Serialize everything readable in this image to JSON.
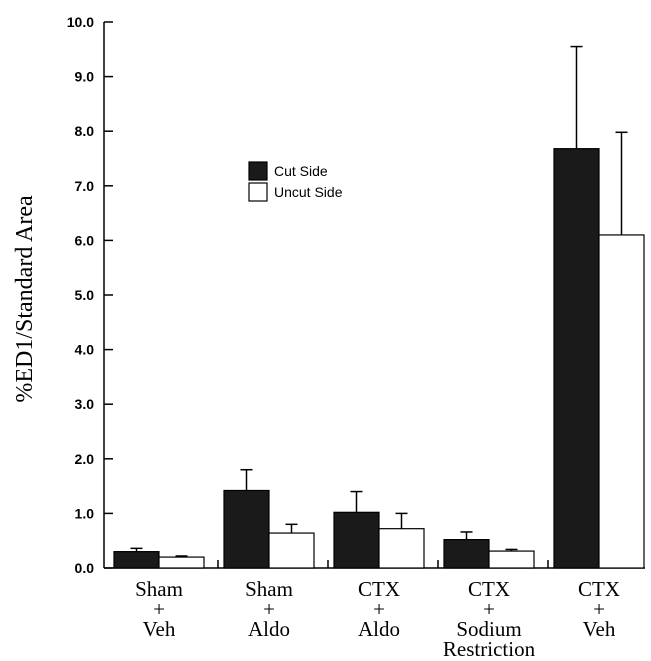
{
  "chart_data": {
    "type": "bar",
    "title": "",
    "xlabel": "",
    "ylabel": "%ED1/Standard Area",
    "ylim": [
      0,
      10
    ],
    "yticks": [
      "0.0",
      "1.0",
      "2.0",
      "3.0",
      "4.0",
      "5.0",
      "6.0",
      "7.0",
      "8.0",
      "9.0",
      "10.0"
    ],
    "categories": [
      [
        "Sham",
        "+",
        "Veh"
      ],
      [
        "Sham",
        "+",
        "Aldo"
      ],
      [
        "CTX",
        "+",
        "Aldo"
      ],
      [
        "CTX",
        "+",
        "Sodium",
        "Restriction"
      ],
      [
        "CTX",
        "+",
        "Veh"
      ]
    ],
    "series": [
      {
        "name": "Cut Side",
        "color": "#1a1a1a",
        "values": [
          0.3,
          1.42,
          1.02,
          0.52,
          7.68
        ],
        "errors": [
          0.06,
          0.38,
          0.38,
          0.14,
          1.87
        ]
      },
      {
        "name": "Uncut Side",
        "color": "#ffffff",
        "values": [
          0.2,
          0.64,
          0.72,
          0.31,
          6.1
        ],
        "errors": [
          0.02,
          0.16,
          0.28,
          0.03,
          1.88
        ]
      }
    ],
    "legend_position": "upper-left",
    "grid": false
  }
}
